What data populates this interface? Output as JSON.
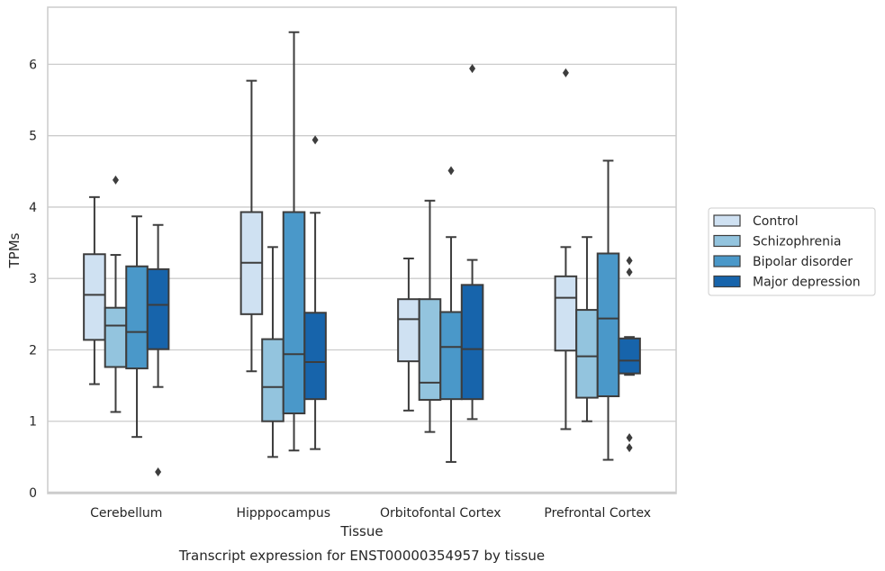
{
  "chart_data": {
    "type": "box",
    "xlabel": "Tissue",
    "ylabel": "TPMs",
    "caption": "Transcript expression for ENST00000354957 by tissue",
    "ylim": [
      0,
      6.8
    ],
    "yticks": [
      0,
      1,
      2,
      3,
      4,
      5,
      6
    ],
    "grid": "horizontal",
    "legend_position": "right",
    "categories": [
      "Cerebellum",
      "Hipppocampus",
      "Orbitofontal Cortex",
      "Prefrontal Cortex"
    ],
    "series": [
      {
        "name": "Control",
        "color": "#cfe1f2",
        "boxes": [
          {
            "whislo": 1.52,
            "q1": 2.14,
            "med": 2.77,
            "q3": 3.34,
            "whishi": 4.14,
            "fliers": []
          },
          {
            "whislo": 1.7,
            "q1": 2.5,
            "med": 3.22,
            "q3": 3.93,
            "whishi": 5.77,
            "fliers": []
          },
          {
            "whislo": 1.15,
            "q1": 1.84,
            "med": 2.43,
            "q3": 2.71,
            "whishi": 3.28,
            "fliers": []
          },
          {
            "whislo": 0.89,
            "q1": 1.99,
            "med": 2.73,
            "q3": 3.03,
            "whishi": 3.44,
            "fliers": [
              5.88
            ]
          }
        ]
      },
      {
        "name": "Schizophrenia",
        "color": "#93c4de",
        "boxes": [
          {
            "whislo": 1.13,
            "q1": 1.76,
            "med": 2.34,
            "q3": 2.59,
            "whishi": 3.33,
            "fliers": [
              4.38
            ]
          },
          {
            "whislo": 0.5,
            "q1": 1.0,
            "med": 1.48,
            "q3": 2.15,
            "whishi": 3.44,
            "fliers": []
          },
          {
            "whislo": 0.85,
            "q1": 1.3,
            "med": 1.54,
            "q3": 2.71,
            "whishi": 4.09,
            "fliers": []
          },
          {
            "whislo": 1.0,
            "q1": 1.33,
            "med": 1.91,
            "q3": 2.56,
            "whishi": 3.58,
            "fliers": []
          }
        ]
      },
      {
        "name": "Bipolar disorder",
        "color": "#4a98c9",
        "boxes": [
          {
            "whislo": 0.78,
            "q1": 1.74,
            "med": 2.25,
            "q3": 3.17,
            "whishi": 3.87,
            "fliers": []
          },
          {
            "whislo": 0.59,
            "q1": 1.11,
            "med": 1.94,
            "q3": 3.93,
            "whishi": 6.45,
            "fliers": []
          },
          {
            "whislo": 0.43,
            "q1": 1.31,
            "med": 2.04,
            "q3": 2.53,
            "whishi": 3.58,
            "fliers": [
              4.51
            ]
          },
          {
            "whislo": 0.46,
            "q1": 1.35,
            "med": 2.44,
            "q3": 3.35,
            "whishi": 4.65,
            "fliers": []
          }
        ]
      },
      {
        "name": "Major depression",
        "color": "#1764ab",
        "boxes": [
          {
            "whislo": 1.48,
            "q1": 2.01,
            "med": 2.63,
            "q3": 3.13,
            "whishi": 3.75,
            "fliers": [
              0.29
            ]
          },
          {
            "whislo": 0.61,
            "q1": 1.31,
            "med": 1.83,
            "q3": 2.52,
            "whishi": 3.92,
            "fliers": [
              4.94
            ]
          },
          {
            "whislo": 1.03,
            "q1": 1.31,
            "med": 2.01,
            "q3": 2.91,
            "whishi": 3.26,
            "fliers": [
              5.94
            ]
          },
          {
            "whislo": 1.65,
            "q1": 1.67,
            "med": 1.85,
            "q3": 2.16,
            "whishi": 2.18,
            "fliers": [
              3.25,
              3.09,
              0.77,
              0.63
            ]
          }
        ]
      }
    ]
  }
}
